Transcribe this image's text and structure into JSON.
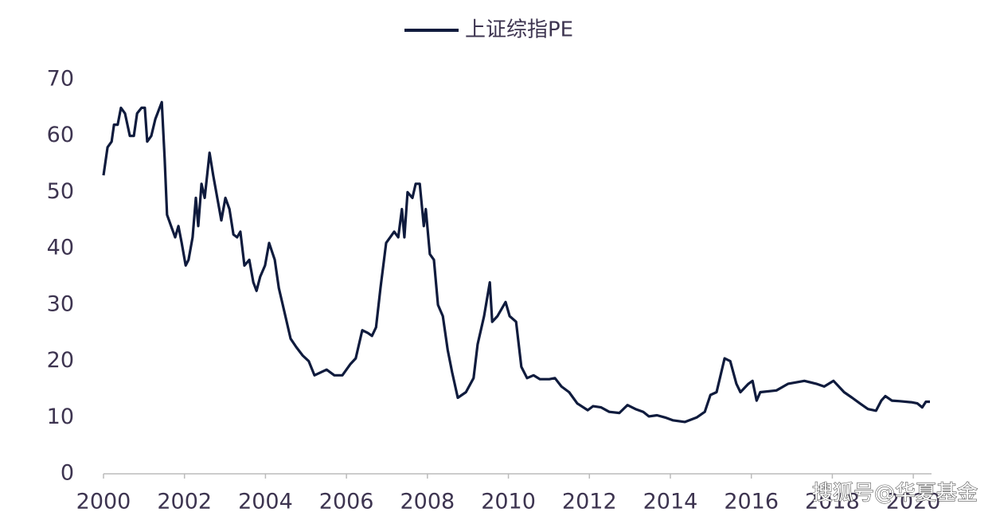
{
  "chart_data": {
    "type": "line",
    "series": [
      {
        "name": "上证综指PE",
        "color": "#0f1b3d",
        "x": [
          2000,
          2000.1,
          2000.2,
          2000.26,
          2000.35,
          2000.43,
          2000.53,
          2000.65,
          2000.75,
          2000.83,
          2000.94,
          2001.02,
          2001.08,
          2001.18,
          2001.28,
          2001.44,
          2001.51,
          2001.57,
          2001.67,
          2001.77,
          2001.85,
          2001.93,
          2002.03,
          2002.1,
          2002.2,
          2002.28,
          2002.34,
          2002.42,
          2002.5,
          2002.62,
          2002.71,
          2002.81,
          2002.91,
          2003.01,
          2003.11,
          2003.21,
          2003.3,
          2003.38,
          2003.48,
          2003.6,
          2003.7,
          2003.78,
          2003.87,
          2003.99,
          2004.09,
          2004.23,
          2004.33,
          2004.46,
          2004.62,
          2004.76,
          2004.92,
          2005.07,
          2005.21,
          2005.51,
          2005.7,
          2005.9,
          2006.1,
          2006.23,
          2006.39,
          2006.53,
          2006.63,
          2006.73,
          2006.84,
          2006.98,
          2007.18,
          2007.28,
          2007.37,
          2007.43,
          2007.51,
          2007.63,
          2007.71,
          2007.81,
          2007.91,
          2007.96,
          2008.06,
          2008.16,
          2008.26,
          2008.38,
          2008.5,
          2008.61,
          2008.75,
          2008.95,
          2009.14,
          2009.24,
          2009.4,
          2009.54,
          2009.6,
          2009.73,
          2009.93,
          2010.03,
          2010.19,
          2010.32,
          2010.46,
          2010.62,
          2010.78,
          2011.01,
          2011.15,
          2011.31,
          2011.5,
          2011.7,
          2011.96,
          2012.09,
          2012.29,
          2012.49,
          2012.74,
          2012.94,
          2013.14,
          2013.33,
          2013.47,
          2013.67,
          2013.87,
          2014.06,
          2014.36,
          2014.65,
          2014.85,
          2014.99,
          2015.14,
          2015.34,
          2015.48,
          2015.63,
          2015.73,
          2015.93,
          2016.03,
          2016.13,
          2016.22,
          2016.62,
          2016.91,
          2017.31,
          2017.6,
          2017.8,
          2018.03,
          2018.29,
          2018.49,
          2018.68,
          2018.88,
          2019.08,
          2019.21,
          2019.31,
          2019.47,
          2019.67,
          2019.96,
          2020.1,
          2020.22,
          2020.31,
          2020.41
        ],
        "values": [
          53,
          58,
          59,
          62,
          62,
          65,
          64,
          60,
          60,
          64,
          65,
          65,
          59,
          60,
          63,
          66,
          56,
          46,
          44,
          42,
          44,
          41,
          37,
          38,
          42,
          49,
          44,
          51.5,
          49,
          57,
          53,
          49,
          45,
          49,
          47,
          42.5,
          42,
          43,
          37,
          38,
          34,
          32.5,
          35,
          37,
          41,
          38,
          33,
          29,
          24,
          22.5,
          21,
          20,
          17.5,
          18.5,
          17.5,
          17.5,
          19.5,
          20.5,
          25.5,
          25,
          24.5,
          26,
          33,
          41,
          43,
          42,
          47,
          42,
          50,
          49,
          51.5,
          51.5,
          44,
          47,
          39,
          38,
          30,
          28,
          22,
          18,
          13.5,
          14.5,
          17,
          23,
          28,
          34,
          27,
          28,
          30.5,
          28,
          27,
          19,
          17,
          17.5,
          16.8,
          16.8,
          17,
          15.5,
          14.5,
          12.5,
          11.3,
          12,
          11.8,
          11,
          10.8,
          12.2,
          11.5,
          11,
          10.2,
          10.4,
          10,
          9.5,
          9.2,
          10,
          11,
          14,
          14.5,
          20.5,
          20,
          16,
          14.5,
          16,
          16.5,
          13,
          14.5,
          14.8,
          16,
          16.5,
          16,
          15.5,
          16.5,
          14.5,
          13.5,
          12.5,
          11.5,
          11.2,
          13,
          13.8,
          13,
          12.9,
          12.7,
          12.5,
          11.8,
          12.8,
          12.8
        ]
      }
    ],
    "xlim": [
      2000,
      2020.45
    ],
    "xticks": [
      2000,
      2002,
      2004,
      2006,
      2008,
      2010,
      2012,
      2014,
      2016,
      2018,
      2020
    ],
    "ylim": [
      0,
      70
    ],
    "yticks": [
      0,
      10,
      20,
      30,
      40,
      50,
      60,
      70
    ],
    "grid": false,
    "legend": "top",
    "watermark": "搜狐号@华夏基金"
  }
}
